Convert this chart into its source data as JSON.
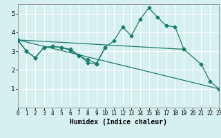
{
  "title": "",
  "xlabel": "Humidex (Indice chaleur)",
  "background_color": "#d6f0f0",
  "grid_color": "#ffffff",
  "line_color": "#1a7a6e",
  "line1_x": [
    0,
    1,
    2,
    3,
    4,
    5,
    6,
    7,
    8,
    9,
    10,
    11,
    12,
    13,
    14,
    15,
    16,
    17,
    18,
    19
  ],
  "line1_y": [
    3.6,
    3.0,
    2.65,
    3.2,
    3.25,
    3.2,
    3.1,
    2.8,
    2.4,
    2.3,
    3.2,
    3.55,
    4.3,
    3.8,
    4.7,
    5.3,
    4.8,
    4.35,
    4.3,
    3.1
  ],
  "line2_x": [
    0,
    1,
    2,
    3,
    4,
    5,
    6,
    7,
    8,
    9,
    10
  ],
  "line2_y": [
    3.6,
    3.0,
    2.65,
    3.2,
    3.25,
    3.2,
    3.05,
    2.75,
    2.55,
    2.35,
    3.2
  ],
  "line3_x": [
    0,
    19,
    21,
    22,
    23
  ],
  "line3_y": [
    3.6,
    3.1,
    2.3,
    1.4,
    1.0
  ],
  "line4_x": [
    0,
    23
  ],
  "line4_y": [
    3.6,
    1.0
  ],
  "xlim": [
    0,
    23
  ],
  "ylim": [
    0,
    5.5
  ],
  "yticks": [
    1,
    2,
    3,
    4,
    5
  ],
  "xticks": [
    0,
    1,
    2,
    3,
    4,
    5,
    6,
    7,
    8,
    9,
    10,
    11,
    12,
    13,
    14,
    15,
    16,
    17,
    18,
    19,
    20,
    21,
    22,
    23
  ]
}
